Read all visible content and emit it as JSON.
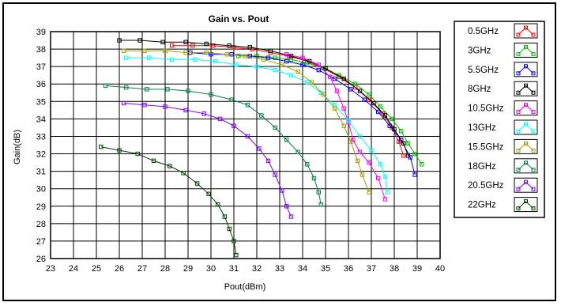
{
  "chart_data": {
    "type": "line",
    "title": "Gain vs. Pout",
    "xlabel": "Pout(dBm)",
    "ylabel": "Gain(dB)",
    "xlim": [
      23,
      40
    ],
    "ylim": [
      26,
      39
    ],
    "x_ticks": [
      23,
      24,
      25,
      26,
      27,
      28,
      29,
      30,
      31,
      32,
      33,
      34,
      35,
      36,
      37,
      38,
      39,
      40
    ],
    "y_ticks": [
      26,
      27,
      28,
      29,
      30,
      31,
      32,
      33,
      34,
      35,
      36,
      37,
      38,
      39
    ],
    "grid": true,
    "legend_position": "right",
    "series": [
      {
        "name": "0.5GHz",
        "color": "#ff0000",
        "points": [
          [
            28.3,
            38.2
          ],
          [
            29.2,
            38.2
          ],
          [
            30.1,
            38.2
          ],
          [
            31.0,
            38.1
          ],
          [
            31.8,
            38.0
          ],
          [
            32.6,
            37.8
          ],
          [
            33.4,
            37.6
          ],
          [
            34.2,
            37.3
          ],
          [
            34.9,
            36.9
          ],
          [
            35.6,
            36.4
          ],
          [
            36.3,
            35.8
          ],
          [
            36.9,
            35.1
          ],
          [
            37.5,
            34.3
          ],
          [
            37.9,
            33.5
          ],
          [
            38.2,
            32.7
          ],
          [
            38.4,
            31.9
          ]
        ]
      },
      {
        "name": "3GHz",
        "color": "#00c000",
        "points": [
          [
            31.2,
            37.6
          ],
          [
            32.0,
            37.6
          ],
          [
            32.8,
            37.5
          ],
          [
            33.5,
            37.4
          ],
          [
            34.2,
            37.2
          ],
          [
            34.9,
            36.9
          ],
          [
            35.6,
            36.5
          ],
          [
            36.3,
            36.0
          ],
          [
            36.9,
            35.4
          ],
          [
            37.4,
            34.7
          ],
          [
            37.9,
            34.0
          ],
          [
            38.3,
            33.3
          ],
          [
            38.6,
            32.6
          ],
          [
            38.9,
            32.0
          ],
          [
            39.2,
            31.4
          ]
        ]
      },
      {
        "name": "5.5GHz",
        "color": "#0000ff",
        "points": [
          [
            29.1,
            37.8
          ],
          [
            30.0,
            37.7
          ],
          [
            30.9,
            37.7
          ],
          [
            31.7,
            37.6
          ],
          [
            32.5,
            37.5
          ],
          [
            33.3,
            37.3
          ],
          [
            34.0,
            37.1
          ],
          [
            34.7,
            36.8
          ],
          [
            35.4,
            36.3
          ],
          [
            36.1,
            35.7
          ],
          [
            36.7,
            35.1
          ],
          [
            37.3,
            34.4
          ],
          [
            37.8,
            33.6
          ],
          [
            38.3,
            32.8
          ],
          [
            38.7,
            31.8
          ],
          [
            38.9,
            30.8
          ]
        ]
      },
      {
        "name": "8GHz",
        "color": "#000000",
        "points": [
          [
            26.0,
            38.5
          ],
          [
            26.9,
            38.5
          ],
          [
            27.9,
            38.4
          ],
          [
            28.9,
            38.4
          ],
          [
            29.8,
            38.3
          ],
          [
            30.8,
            38.2
          ],
          [
            31.7,
            38.1
          ],
          [
            32.6,
            37.9
          ],
          [
            33.5,
            37.6
          ],
          [
            34.3,
            37.3
          ],
          [
            35.0,
            36.9
          ],
          [
            35.8,
            36.3
          ],
          [
            36.5,
            35.6
          ],
          [
            37.1,
            34.9
          ],
          [
            37.6,
            34.2
          ],
          [
            38.0,
            33.4
          ],
          [
            38.4,
            32.6
          ],
          [
            38.6,
            31.9
          ]
        ]
      },
      {
        "name": "10.5GHz",
        "color": "#ff00ff",
        "points": [
          [
            33.3,
            37.7
          ],
          [
            34.0,
            37.5
          ],
          [
            34.7,
            37.1
          ],
          [
            35.2,
            36.4
          ],
          [
            35.5,
            35.6
          ],
          [
            35.8,
            34.6
          ],
          [
            36.0,
            33.8
          ],
          [
            36.2,
            32.8
          ],
          [
            36.5,
            32.1
          ],
          [
            36.9,
            31.5
          ],
          [
            37.3,
            30.6
          ],
          [
            37.6,
            29.4
          ]
        ]
      },
      {
        "name": "13GHz",
        "color": "#00ffff",
        "points": [
          [
            26.3,
            37.5
          ],
          [
            27.3,
            37.5
          ],
          [
            28.3,
            37.4
          ],
          [
            29.3,
            37.4
          ],
          [
            30.2,
            37.3
          ],
          [
            31.1,
            37.1
          ],
          [
            32.0,
            37.0
          ],
          [
            32.8,
            36.8
          ],
          [
            33.5,
            36.5
          ],
          [
            34.2,
            36.1
          ],
          [
            34.8,
            35.5
          ],
          [
            35.4,
            34.8
          ],
          [
            36.0,
            33.9
          ],
          [
            36.5,
            33.0
          ],
          [
            37.0,
            32.2
          ],
          [
            37.4,
            31.4
          ],
          [
            37.6,
            30.7
          ],
          [
            37.7,
            29.8
          ]
        ]
      },
      {
        "name": "15.5GHz",
        "color": "#a0a000",
        "points": [
          [
            26.2,
            37.9
          ],
          [
            27.1,
            37.9
          ],
          [
            28.0,
            37.9
          ],
          [
            28.9,
            37.8
          ],
          [
            29.8,
            37.8
          ],
          [
            30.7,
            37.7
          ],
          [
            31.5,
            37.6
          ],
          [
            32.3,
            37.4
          ],
          [
            33.1,
            37.1
          ],
          [
            33.8,
            36.7
          ],
          [
            34.4,
            36.1
          ],
          [
            34.9,
            35.4
          ],
          [
            35.4,
            34.6
          ],
          [
            35.8,
            33.6
          ],
          [
            36.1,
            32.7
          ],
          [
            36.4,
            31.6
          ],
          [
            36.6,
            30.8
          ],
          [
            36.9,
            29.8
          ]
        ]
      },
      {
        "name": "18GHz",
        "color": "#008040",
        "points": [
          [
            25.4,
            35.9
          ],
          [
            26.3,
            35.8
          ],
          [
            27.2,
            35.7
          ],
          [
            28.1,
            35.7
          ],
          [
            29.0,
            35.6
          ],
          [
            30.0,
            35.4
          ],
          [
            30.9,
            35.1
          ],
          [
            31.6,
            34.8
          ],
          [
            32.2,
            34.2
          ],
          [
            32.8,
            33.5
          ],
          [
            33.3,
            32.8
          ],
          [
            33.8,
            32.1
          ],
          [
            34.2,
            31.4
          ],
          [
            34.5,
            30.6
          ],
          [
            34.7,
            29.8
          ],
          [
            34.8,
            29.1
          ]
        ]
      },
      {
        "name": "20.5GHz",
        "color": "#8000ff",
        "points": [
          [
            26.2,
            34.9
          ],
          [
            27.1,
            34.8
          ],
          [
            28.0,
            34.7
          ],
          [
            28.9,
            34.5
          ],
          [
            29.7,
            34.3
          ],
          [
            30.4,
            34.0
          ],
          [
            31.0,
            33.6
          ],
          [
            31.6,
            33.0
          ],
          [
            32.1,
            32.3
          ],
          [
            32.5,
            31.6
          ],
          [
            32.8,
            30.8
          ],
          [
            33.1,
            29.9
          ],
          [
            33.3,
            29.0
          ],
          [
            33.5,
            28.4
          ]
        ]
      },
      {
        "name": "22GHz",
        "color": "#004000",
        "points": [
          [
            25.2,
            32.4
          ],
          [
            26.0,
            32.2
          ],
          [
            26.8,
            32.0
          ],
          [
            27.5,
            31.6
          ],
          [
            28.2,
            31.3
          ],
          [
            28.8,
            30.9
          ],
          [
            29.4,
            30.3
          ],
          [
            29.9,
            29.7
          ],
          [
            30.3,
            29.1
          ],
          [
            30.6,
            28.4
          ],
          [
            30.8,
            27.7
          ],
          [
            31.0,
            27.0
          ],
          [
            31.1,
            26.2
          ]
        ]
      }
    ]
  }
}
